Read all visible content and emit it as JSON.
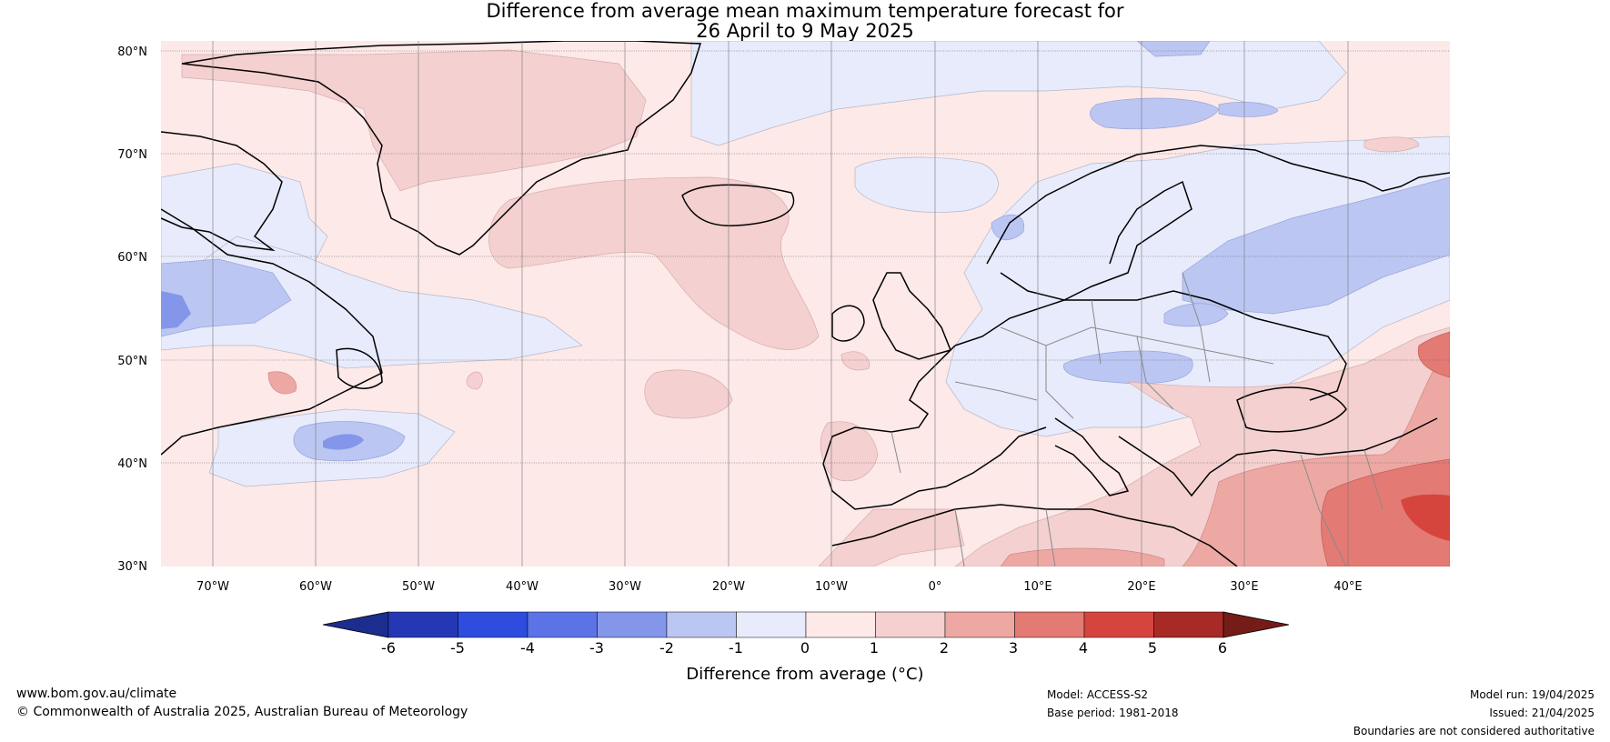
{
  "title": {
    "line1": "Difference from average mean maximum temperature forecast for",
    "line2": "26 April to 9 May 2025"
  },
  "axes": {
    "lat_ticks": [
      "80°N",
      "70°N",
      "60°N",
      "50°N",
      "40°N",
      "30°N"
    ],
    "lon_ticks": [
      "70°W",
      "60°W",
      "50°W",
      "40°W",
      "30°W",
      "20°W",
      "10°W",
      "0°",
      "10°E",
      "20°E",
      "30°E",
      "40°E"
    ],
    "lon_range": [
      -75,
      50
    ],
    "lat_range": [
      30,
      81
    ]
  },
  "colorbar": {
    "label": "Difference from average (°C)",
    "ticks": [
      "-6",
      "-5",
      "-4",
      "-3",
      "-2",
      "-1",
      "0",
      "1",
      "2",
      "3",
      "4",
      "5",
      "6"
    ],
    "colors": [
      "#1c2d8f",
      "#2438b5",
      "#2e4cdd",
      "#5b73e6",
      "#8496ea",
      "#bcc6f2",
      "#e7ebfb",
      "#fce9e8",
      "#f4d0d0",
      "#eda8a4",
      "#e47a74",
      "#d5453e",
      "#a82a26",
      "#751c19"
    ]
  },
  "footer": {
    "website": "www.bom.gov.au/climate",
    "copyright": "© Commonwealth of Australia 2025, Australian Bureau of Meteorology",
    "model": "Model: ACCESS-S2",
    "base_period": "Base period: 1981-2018",
    "model_run": "Model run: 19/04/2025",
    "issued": "Issued: 21/04/2025",
    "disclaimer": "Boundaries are not considered authoritative"
  }
}
